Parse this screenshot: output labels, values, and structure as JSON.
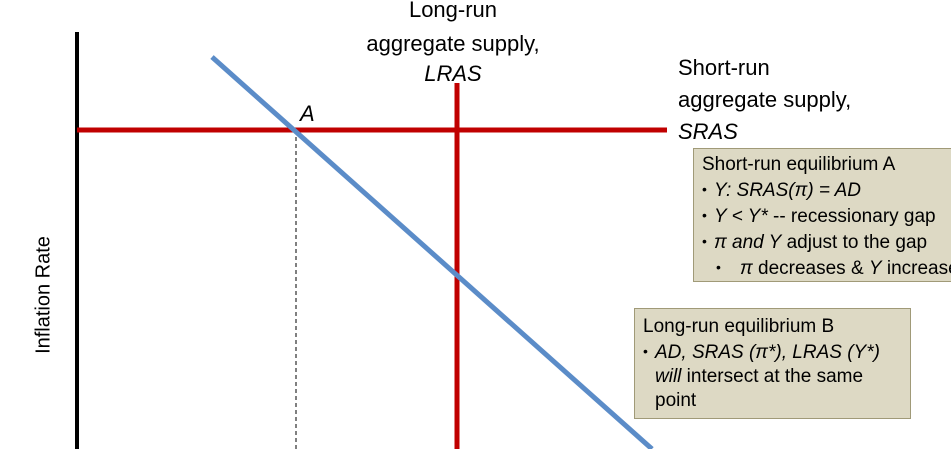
{
  "axes": {
    "y_label": "Inflation Rate"
  },
  "curves": {
    "lras": {
      "line1": "Long-run",
      "line2": "aggregate supply,",
      "abbr": "LRAS",
      "color": "#c00000"
    },
    "sras": {
      "line1": "Short-run",
      "line2": "aggregate supply,",
      "abbr": "SRAS",
      "color": "#c00000"
    },
    "ad": {
      "color": "#5b8cc8"
    }
  },
  "points": {
    "a": "A"
  },
  "boxes": {
    "short_run": {
      "title": "Short-run equilibrium A",
      "b1_math": "Y: SRAS(π) = AD",
      "b2_math": "Y < Y* ",
      "b2_text": "-- recessionary gap",
      "b3_a": "π and Y",
      "b3_b": " adjust to the gap",
      "b4_a": "π",
      "b4_b": " decreases & ",
      "b4_c": "Y",
      "b4_d": " increases"
    },
    "long_run": {
      "title": "Long-run equilibrium B",
      "b1_math": "AD, SRAS (π*), LRAS (Y*)",
      "b2_a": "will",
      "b2_b": " intersect at the same",
      "b3": "point"
    },
    "fill": "#ddd9c4"
  }
}
